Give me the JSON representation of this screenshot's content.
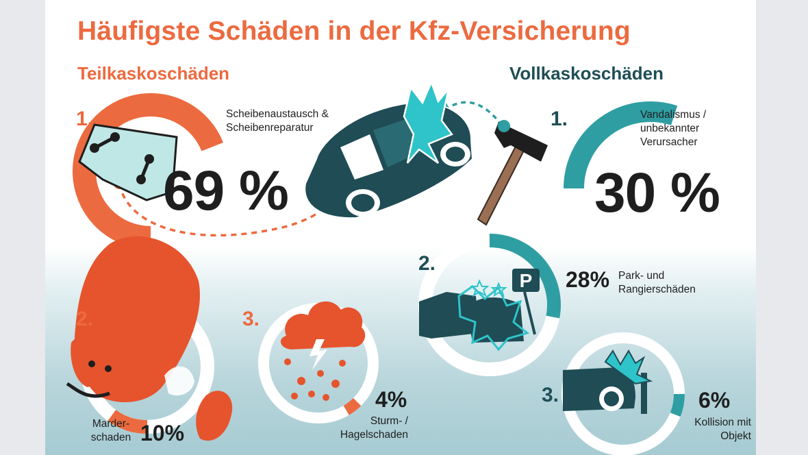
{
  "chart_data": {
    "type": "pie",
    "title": "Häufigste Schäden in der Kfz-Versicherung",
    "groups": [
      {
        "title": "Teilkaskoschäden",
        "color": "#ec6a3f",
        "items": [
          {
            "rank": "1.",
            "label": "Scheibenaustausch & Scheibenreparatur",
            "value": 69,
            "value_label": "69 %"
          },
          {
            "rank": "2.",
            "label": "Marder-schaden",
            "value": 10,
            "value_label": "10%"
          },
          {
            "rank": "3.",
            "label": "Sturm- / Hagelschaden",
            "value": 4,
            "value_label": "4%"
          }
        ]
      },
      {
        "title": "Vollkaskoschäden",
        "color": "#2f9ea3",
        "items": [
          {
            "rank": "1.",
            "label": "Vandalismus / unbekannter Verursacher",
            "value": 30,
            "value_label": "30 %"
          },
          {
            "rank": "2.",
            "label": "Park- und Rangierschäden",
            "value": 28,
            "value_label": "28%"
          },
          {
            "rank": "3.",
            "label": "Kollision mit Objekt",
            "value": 6,
            "value_label": "6%"
          }
        ]
      }
    ],
    "colors": {
      "orange": "#ec6a3f",
      "teal": "#2f9ea3",
      "dark_teal": "#1e4e55"
    }
  }
}
